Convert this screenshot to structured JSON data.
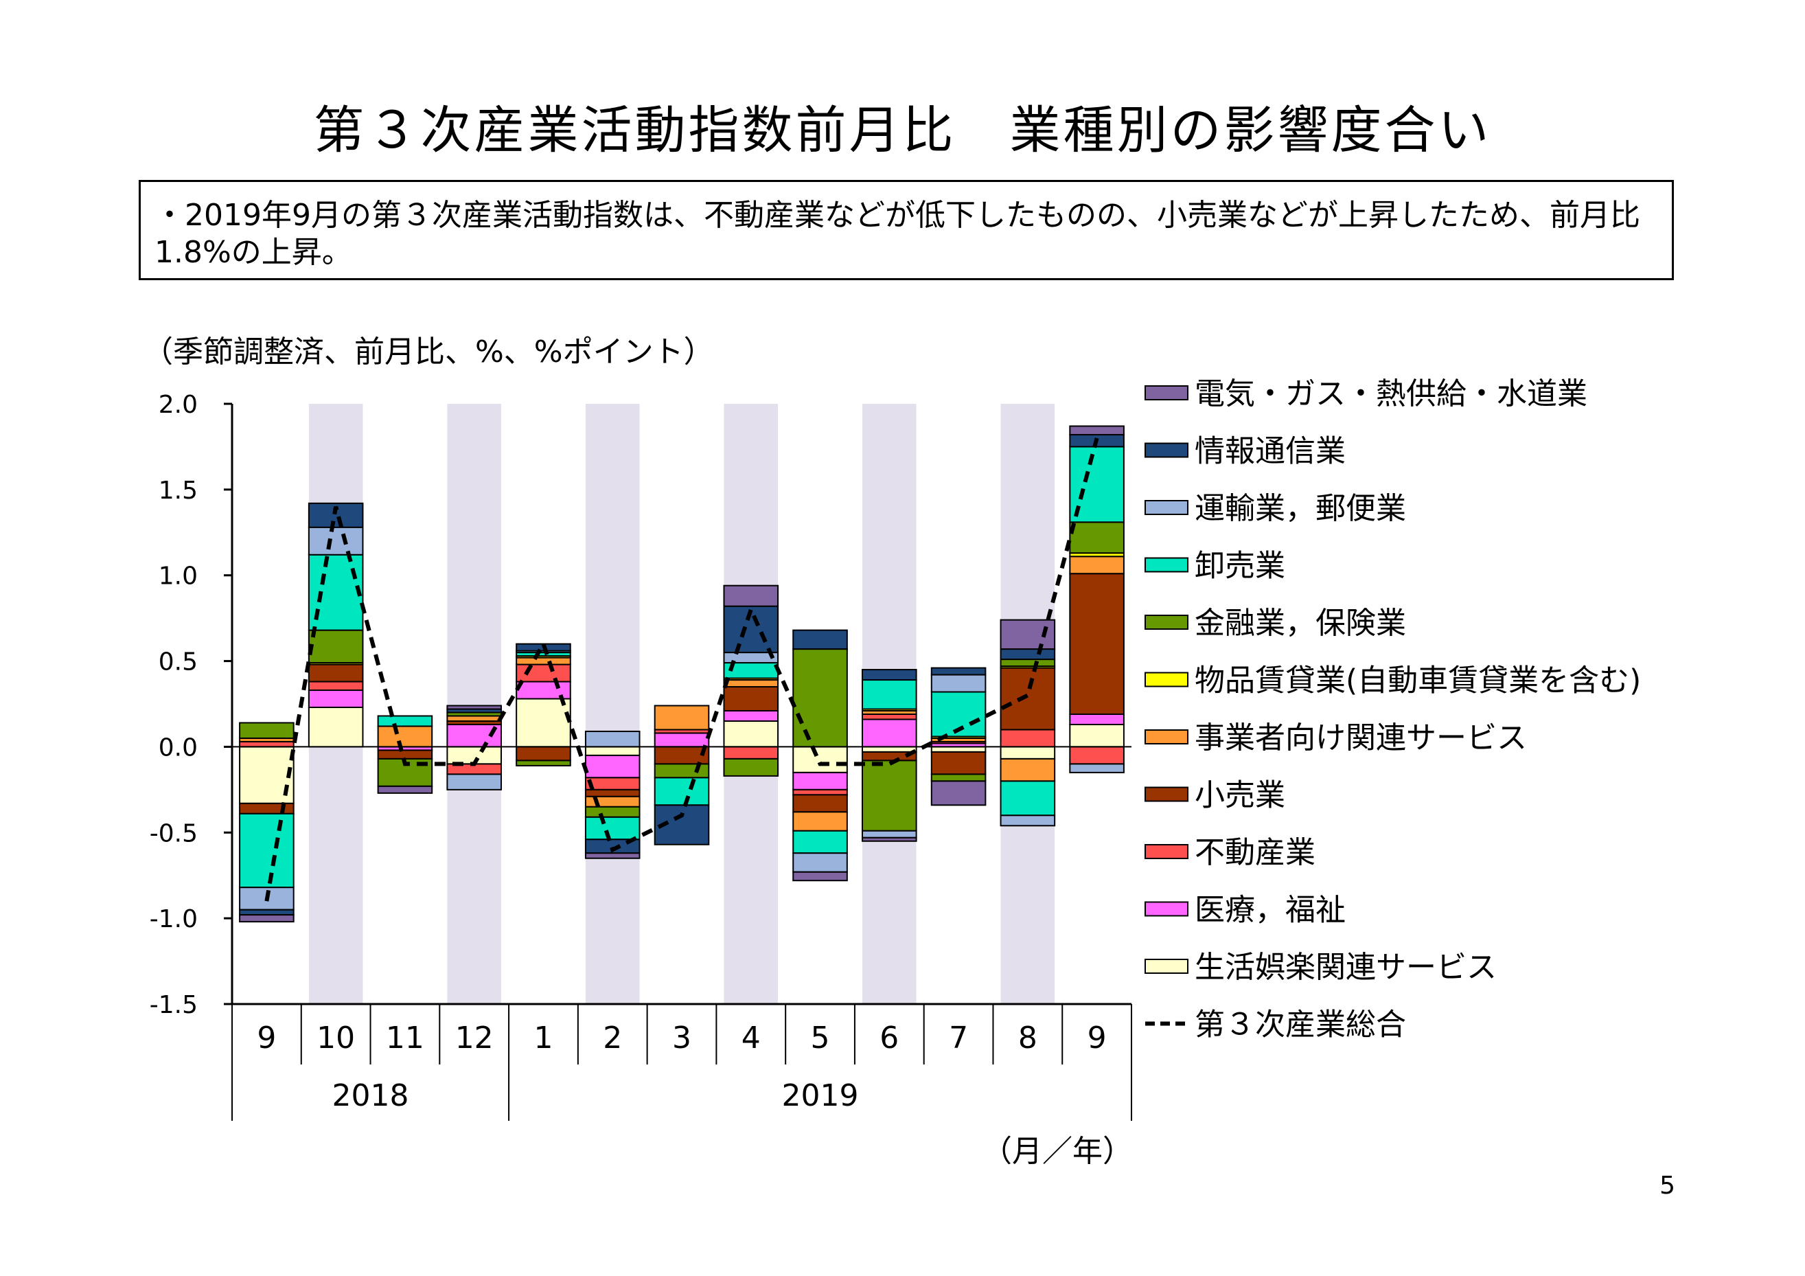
{
  "title": "第３次産業活動指数前月比　業種別の影響度合い",
  "summary": "・2019年9月の第３次産業活動指数は、不動産業などが低下したものの、小売業などが上昇したため、前月比1.8%の上昇。",
  "unit_label": "（季節調整済、前月比、%、%ポイント）",
  "x_unit_label": "（月／年）",
  "page_number": "5",
  "chart_data": {
    "type": "bar",
    "stacked": true,
    "title": "",
    "ylim": [
      -1.5,
      2.0
    ],
    "yticks": [
      "2.0",
      "1.5",
      "1.0",
      "0.5",
      "0.0",
      "-0.5",
      "-1.0",
      "-1.5"
    ],
    "categories": [
      "9",
      "10",
      "11",
      "12",
      "1",
      "2",
      "3",
      "4",
      "5",
      "6",
      "7",
      "8",
      "9"
    ],
    "year_groups": [
      {
        "label": "2018",
        "count": 4
      },
      {
        "label": "2019",
        "count": 9
      }
    ],
    "shaded_months": [
      "10",
      "12",
      "2",
      "4",
      "6",
      "8"
    ],
    "legend_position": "right",
    "series": [
      {
        "name": "生活娯楽関連サービス",
        "color": "#FFFFCC",
        "values": [
          -0.33,
          0.23,
          0.0,
          -0.1,
          0.28,
          -0.05,
          0.0,
          0.15,
          -0.15,
          -0.03,
          -0.03,
          -0.07,
          0.13
        ]
      },
      {
        "name": "医療，福祉",
        "color": "#FF66FF",
        "values": [
          0.0,
          0.1,
          -0.02,
          0.13,
          0.1,
          -0.13,
          0.08,
          0.06,
          -0.1,
          0.16,
          0.02,
          0.0,
          0.06
        ]
      },
      {
        "name": "不動産業",
        "color": "#FF5050",
        "values": [
          0.03,
          0.05,
          0.0,
          -0.06,
          0.1,
          -0.07,
          0.02,
          -0.07,
          -0.03,
          0.03,
          0.01,
          0.1,
          -0.1
        ]
      },
      {
        "name": "小売業",
        "color": "#993300",
        "values": [
          -0.06,
          0.1,
          -0.05,
          0.02,
          -0.08,
          -0.04,
          -0.1,
          0.14,
          -0.1,
          -0.05,
          -0.13,
          0.36,
          0.82
        ]
      },
      {
        "name": "事業者向け関連サービス",
        "color": "#FF9933",
        "values": [
          0.02,
          0.0,
          0.12,
          0.03,
          0.04,
          -0.06,
          0.14,
          0.04,
          -0.11,
          0.02,
          0.02,
          -0.13,
          0.1
        ]
      },
      {
        "name": "物品賃貸業(自動車賃貸業を含む)",
        "color": "#FFFF00",
        "values": [
          0.0,
          0.01,
          0.0,
          0.0,
          0.01,
          0.0,
          0.0,
          0.01,
          0.0,
          0.01,
          0.01,
          0.01,
          0.02
        ]
      },
      {
        "name": "金融業，保険業",
        "color": "#669900",
        "values": [
          0.09,
          0.19,
          -0.16,
          0.02,
          -0.03,
          -0.06,
          -0.08,
          -0.1,
          0.57,
          -0.41,
          -0.04,
          0.04,
          0.18
        ]
      },
      {
        "name": "卸売業",
        "color": "#00E6BE",
        "values": [
          -0.43,
          0.44,
          0.06,
          0.0,
          0.02,
          -0.13,
          -0.16,
          0.09,
          -0.13,
          0.17,
          0.26,
          -0.2,
          0.44
        ]
      },
      {
        "name": "運輸業，郵便業",
        "color": "#99B3DD",
        "values": [
          -0.13,
          0.16,
          0.0,
          -0.09,
          0.01,
          0.09,
          0.0,
          0.06,
          -0.11,
          -0.04,
          0.1,
          -0.06,
          -0.05
        ]
      },
      {
        "name": "情報通信業",
        "color": "#1F497D",
        "values": [
          -0.03,
          0.14,
          0.0,
          0.02,
          0.04,
          -0.08,
          -0.23,
          0.27,
          0.11,
          0.06,
          0.04,
          0.06,
          0.07
        ]
      },
      {
        "name": "電気・ガス・熱供給・水道業",
        "color": "#8064A2",
        "values": [
          -0.04,
          0.0,
          -0.04,
          0.02,
          0.0,
          -0.03,
          0.0,
          0.12,
          -0.05,
          -0.02,
          -0.14,
          0.17,
          0.05
        ]
      }
    ],
    "total": {
      "name": "第３次産業総合",
      "color": "#000000",
      "style": "dashed",
      "values": [
        -0.9,
        1.4,
        -0.1,
        -0.1,
        0.6,
        -0.6,
        -0.4,
        0.8,
        -0.1,
        -0.1,
        0.1,
        0.3,
        1.8
      ]
    }
  }
}
